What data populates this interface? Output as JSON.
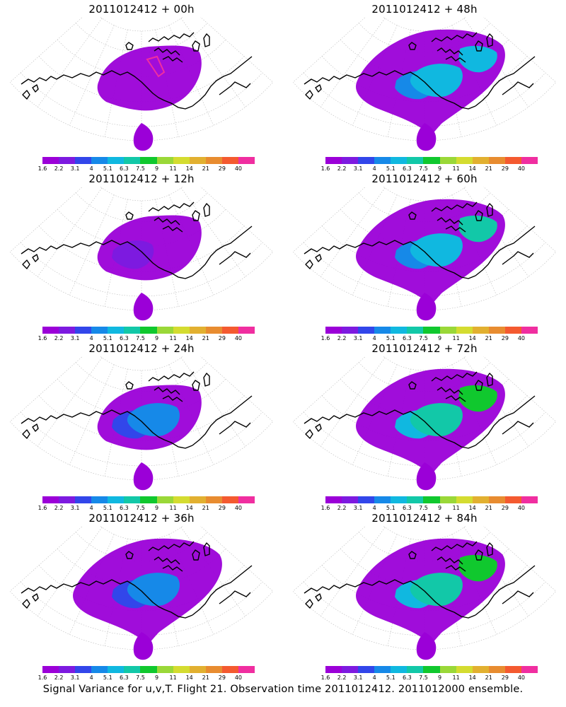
{
  "caption": "Signal Variance for u,v,T. Flight 21. Observation time 2011012412. 2011012000 ensemble.",
  "colorbar": {
    "colors": [
      "#9b00d8",
      "#7d1ae0",
      "#3246ea",
      "#1689e8",
      "#10b8e0",
      "#12c8a8",
      "#10c82e",
      "#9ad838",
      "#d4dc30",
      "#e2b030",
      "#e88c30",
      "#f45a30",
      "#f02ea0"
    ],
    "labels": [
      "1.6",
      "2.2",
      "3.1",
      "4",
      "5.1",
      "6.3",
      "7.5",
      "9",
      "11",
      "14",
      "21",
      "29",
      "40"
    ]
  },
  "panels": [
    {
      "title": "2011012412 + 00h",
      "level": 0
    },
    {
      "title": "2011012412 + 48h",
      "level": 4
    },
    {
      "title": "2011012412 + 12h",
      "level": 1
    },
    {
      "title": "2011012412 + 60h",
      "level": 5
    },
    {
      "title": "2011012412 + 24h",
      "level": 2
    },
    {
      "title": "2011012412 + 72h",
      "level": 6
    },
    {
      "title": "2011012412 + 36h",
      "level": 3
    },
    {
      "title": "2011012412 + 84h",
      "level": 7
    }
  ]
}
